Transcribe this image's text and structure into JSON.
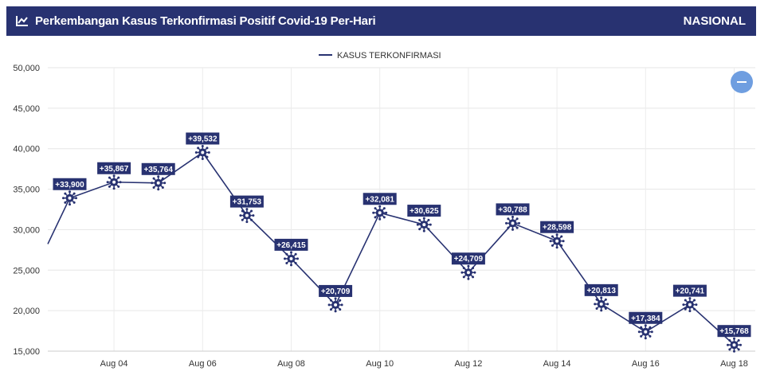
{
  "header": {
    "title": "Perkembangan Kasus Terkonfirmasi Positif Covid-19 Per-Hari",
    "region": "NASIONAL",
    "icon": "line-chart-icon"
  },
  "controls": {
    "zoom_icon": "minus-icon"
  },
  "colors": {
    "header_bg": "#283271",
    "line": "#283271",
    "label_bg": "#283271",
    "zoom_button": "#6f9ee0"
  },
  "chart_data": {
    "type": "line",
    "legend": "top-center",
    "grid": true,
    "ylim": [
      15000,
      50000
    ],
    "y_ticks": [
      15000,
      20000,
      25000,
      30000,
      35000,
      40000,
      45000,
      50000
    ],
    "y_tick_labels": [
      "15,000",
      "20,000",
      "25,000",
      "30,000",
      "35,000",
      "40,000",
      "45,000",
      "50,000"
    ],
    "x_tick_labels": [
      "Aug 04",
      "Aug 06",
      "Aug 08",
      "Aug 10",
      "Aug 12",
      "Aug 14",
      "Aug 16",
      "Aug 18"
    ],
    "series": [
      {
        "name": "KASUS TERKONFIRMASI",
        "leading_value": 28228,
        "x": [
          "Aug 03",
          "Aug 04",
          "Aug 05",
          "Aug 06",
          "Aug 07",
          "Aug 08",
          "Aug 09",
          "Aug 10",
          "Aug 11",
          "Aug 12",
          "Aug 13",
          "Aug 14",
          "Aug 15",
          "Aug 16",
          "Aug 17",
          "Aug 18"
        ],
        "values": [
          33900,
          35867,
          35764,
          39532,
          31753,
          26415,
          20709,
          32081,
          30625,
          24709,
          30788,
          28598,
          20813,
          17384,
          20741,
          15768
        ],
        "labels": [
          "+33,900",
          "+35,867",
          "+35,764",
          "+39,532",
          "+31,753",
          "+26,415",
          "+20,709",
          "+32,081",
          "+30,625",
          "+24,709",
          "+30,788",
          "+28,598",
          "+20,813",
          "+17,384",
          "+20,741",
          "+15,768"
        ]
      }
    ]
  }
}
